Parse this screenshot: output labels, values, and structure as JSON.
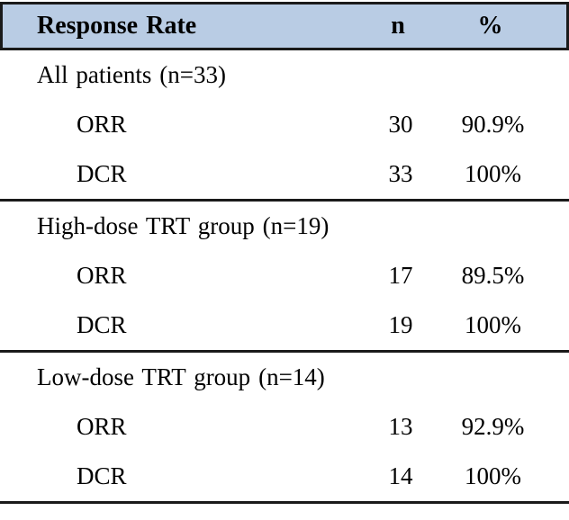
{
  "table": {
    "header": {
      "col1": "Response Rate",
      "col2": "n",
      "col3": "%"
    },
    "sections": [
      {
        "label": "All patients (n=33)",
        "rows": [
          {
            "name": "ORR",
            "n": "30",
            "pct": "90.9%"
          },
          {
            "name": "DCR",
            "n": "33",
            "pct": "100%"
          }
        ]
      },
      {
        "label": "High-dose TRT group (n=19)",
        "rows": [
          {
            "name": "ORR",
            "n": "17",
            "pct": "89.5%"
          },
          {
            "name": "DCR",
            "n": "19",
            "pct": "100%"
          }
        ]
      },
      {
        "label": "Low-dose TRT group (n=14)",
        "rows": [
          {
            "name": "ORR",
            "n": "13",
            "pct": "92.9%"
          },
          {
            "name": "DCR",
            "n": "14",
            "pct": "100%"
          }
        ]
      }
    ],
    "colors": {
      "header_bg": "#b9cce4",
      "border": "#1a1a1a",
      "body_bg": "#ffffff"
    }
  },
  "chart_data": {
    "type": "table",
    "title": "Response Rate",
    "columns": [
      "Response Rate",
      "n",
      "%"
    ],
    "rows": [
      [
        "All patients (n=33)",
        "",
        ""
      ],
      [
        "ORR",
        "30",
        "90.9%"
      ],
      [
        "DCR",
        "33",
        "100%"
      ],
      [
        "High-dose TRT group (n=19)",
        "",
        ""
      ],
      [
        "ORR",
        "17",
        "89.5%"
      ],
      [
        "DCR",
        "19",
        "100%"
      ],
      [
        "Low-dose TRT group (n=14)",
        "",
        ""
      ],
      [
        "ORR",
        "13",
        "92.9%"
      ],
      [
        "DCR",
        "14",
        "100%"
      ]
    ]
  }
}
